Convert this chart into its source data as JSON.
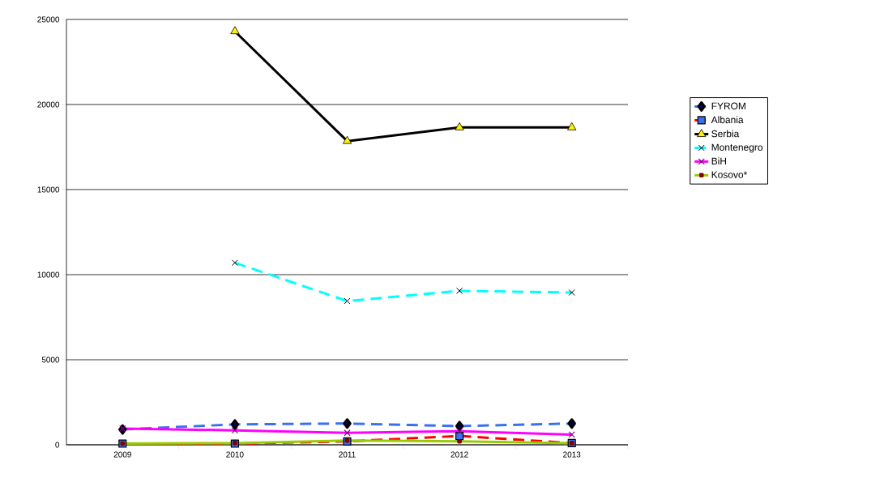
{
  "chart_data": {
    "type": "line",
    "categories": [
      "2009",
      "2010",
      "2011",
      "2012",
      "2013"
    ],
    "ylim": [
      0,
      25000
    ],
    "yticks": [
      0,
      5000,
      10000,
      15000,
      20000,
      25000
    ],
    "grid": "y",
    "legend": "right",
    "series": [
      {
        "name": "FYROM",
        "color": "#3a70f0",
        "marker": "diamond",
        "line_style": "dashed",
        "values": [
          900,
          1200,
          1250,
          1100,
          1250
        ]
      },
      {
        "name": "Albania",
        "color": "#ff0000",
        "marker": "square",
        "line_style": "dashed",
        "values": [
          70,
          70,
          200,
          520,
          100
        ]
      },
      {
        "name": "Serbia",
        "color": "#000000",
        "marker": "triangle",
        "line_style": "solid",
        "values": [
          null,
          24300,
          17850,
          18650,
          18650
        ]
      },
      {
        "name": "Montenegro",
        "color": "#00ffff",
        "marker": "cross",
        "line_style": "dashed",
        "values": [
          null,
          10700,
          8450,
          9050,
          8950
        ]
      },
      {
        "name": "BiH",
        "color": "#ff00ff",
        "marker": "cross",
        "line_style": "solid",
        "values": [
          950,
          850,
          700,
          800,
          600
        ]
      },
      {
        "name": "Kosovo*",
        "color": "#99cc00",
        "marker": "square",
        "line_style": "solid",
        "values": [
          70,
          100,
          250,
          200,
          100
        ]
      }
    ]
  }
}
